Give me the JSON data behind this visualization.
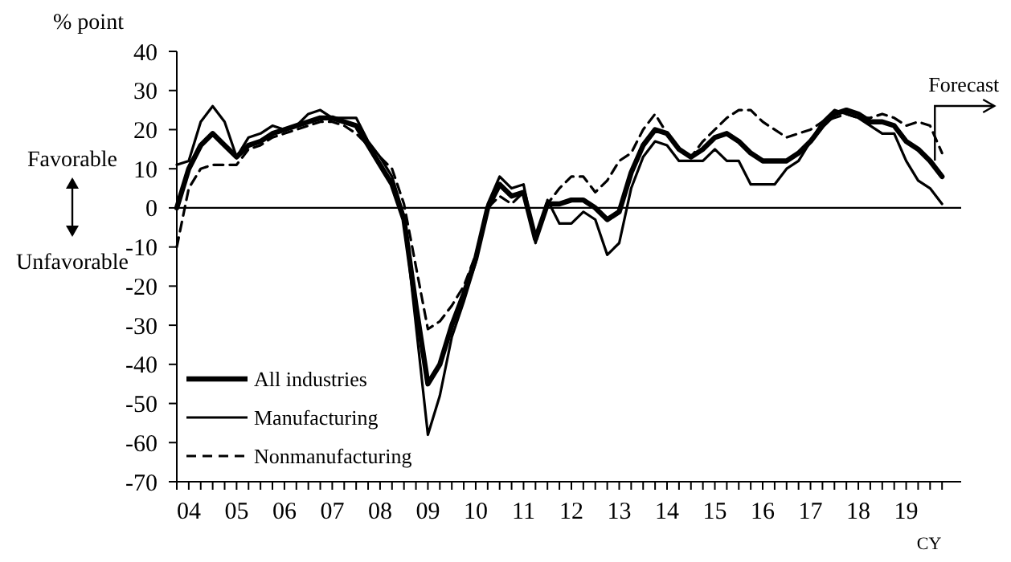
{
  "chart_data": {
    "type": "line",
    "ylabel": "% point",
    "xlabel": "CY",
    "categories": [
      null,
      "04",
      null,
      null,
      null,
      "05",
      null,
      null,
      null,
      "06",
      null,
      null,
      null,
      "07",
      null,
      null,
      null,
      "08",
      null,
      null,
      null,
      "09",
      null,
      null,
      null,
      "10",
      null,
      null,
      null,
      "11",
      null,
      null,
      null,
      "12",
      null,
      null,
      null,
      "13",
      null,
      null,
      null,
      "14",
      null,
      null,
      null,
      "15",
      null,
      null,
      null,
      "16",
      null,
      null,
      null,
      "17",
      null,
      null,
      null,
      "18",
      null,
      null,
      null,
      "19",
      null,
      null,
      null
    ],
    "series": [
      {
        "name": "All industries",
        "color": "#000000",
        "line_style": "solid",
        "values": [
          0,
          10,
          16,
          19,
          16,
          13,
          16,
          17,
          19,
          20,
          21,
          22,
          23,
          23,
          22,
          21,
          16,
          11,
          6,
          -3,
          -25,
          -45,
          -40,
          -30,
          -22,
          -13,
          0,
          6,
          3,
          4,
          -8,
          1,
          1,
          2,
          2,
          0,
          -3,
          -1,
          9,
          16,
          20,
          19,
          15,
          13,
          15,
          18,
          19,
          17,
          14,
          12,
          12,
          12,
          14,
          17,
          21,
          24,
          25,
          24,
          22,
          22,
          21,
          17,
          15,
          12,
          8
        ]
      },
      {
        "name": "Manufacturing",
        "color": "#000000",
        "line_style": "solid",
        "values": [
          11,
          12,
          22,
          26,
          22,
          13,
          18,
          19,
          21,
          20,
          21,
          24,
          25,
          23,
          23,
          23,
          17,
          13,
          8,
          -2,
          -30,
          -58,
          -48,
          -33,
          -24,
          -14,
          1,
          8,
          5,
          6,
          -9,
          2,
          -4,
          -4,
          -1,
          -3,
          -12,
          -9,
          5,
          13,
          17,
          16,
          12,
          12,
          12,
          15,
          12,
          12,
          6,
          6,
          6,
          10,
          12,
          17,
          22,
          25,
          24,
          23,
          21,
          19,
          19,
          12,
          7,
          5,
          1
        ]
      },
      {
        "name": "Nonmanufacturing",
        "color": "#000000",
        "line_style": "dashed",
        "values": [
          -10,
          5,
          10,
          11,
          11,
          11,
          15,
          16,
          18,
          19,
          20,
          21,
          22,
          22,
          21,
          19,
          16,
          13,
          10,
          1,
          -15,
          -31,
          -29,
          -25,
          -20,
          -12,
          0,
          3,
          1,
          4,
          -8,
          1,
          5,
          8,
          8,
          4,
          7,
          12,
          14,
          20,
          24,
          19,
          15,
          13,
          17,
          20,
          23,
          25,
          25,
          22,
          20,
          18,
          19,
          20,
          22,
          23,
          24,
          23,
          23,
          24,
          23,
          21,
          22,
          21,
          14
        ]
      }
    ],
    "ylim": [
      -70,
      40
    ],
    "yticks": [
      -70,
      -60,
      -50,
      -40,
      -30,
      -20,
      -10,
      0,
      10,
      20,
      30,
      40
    ],
    "ref_lines": [
      {
        "axis": "y",
        "value": 0,
        "label": null
      }
    ],
    "annotations": [
      "Favorable",
      "Unfavorable",
      "Forecast"
    ],
    "legend": "bottom left",
    "grid": false,
    "marker": "none"
  }
}
